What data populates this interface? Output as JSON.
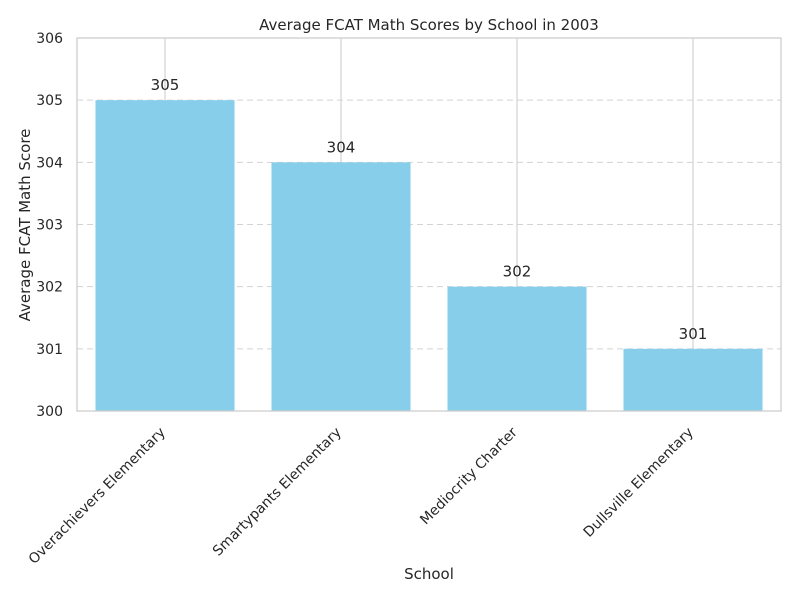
{
  "chart_data": {
    "type": "bar",
    "title": "Average FCAT Math Scores by School in 2003",
    "xlabel": "School",
    "ylabel": "Average FCAT Math Score",
    "categories": [
      "Overachievers Elementary",
      "Smartypants Elementary",
      "Mediocrity Charter",
      "Dullsville Elementary"
    ],
    "values": [
      305,
      304,
      302,
      301
    ],
    "data_labels": [
      "305",
      "304",
      "302",
      "301"
    ],
    "ylim": [
      300,
      306
    ],
    "yticks": [
      300,
      301,
      302,
      303,
      304,
      305,
      306
    ],
    "grid": {
      "y": "dashed",
      "x": "solid"
    },
    "colors": {
      "bar": "#87CEEB",
      "grid": "#d3d3d3",
      "axes": "#cccccc"
    }
  }
}
